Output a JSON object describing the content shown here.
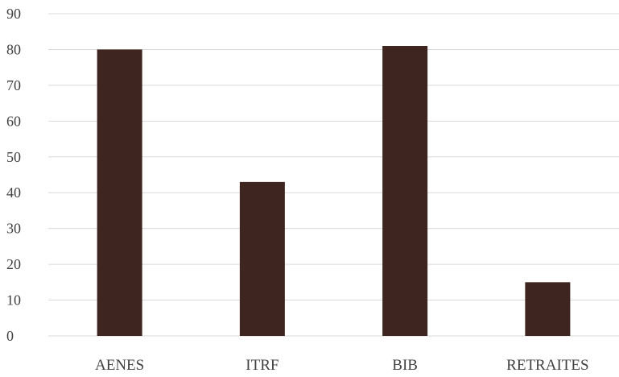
{
  "chart_data": {
    "type": "bar",
    "title": "",
    "categories": [
      "AENES",
      "ITRF",
      "BIB",
      "RETRAITES"
    ],
    "series": [
      {
        "values": [
          80,
          43,
          81,
          15
        ]
      }
    ],
    "ylim": [
      0,
      90
    ],
    "yticks": [
      0,
      10,
      20,
      30,
      40,
      50,
      60,
      70,
      80,
      90
    ],
    "ytick_labels": [
      "0",
      "10",
      "20",
      "30",
      "40",
      "50",
      "60",
      "70",
      "80",
      "90"
    ],
    "xlabel": "",
    "ylabel": "",
    "grid": true,
    "legend": "none",
    "bar_color": "#3f2520",
    "grid_color": "#d9d9d9",
    "text_color": "#404040"
  }
}
